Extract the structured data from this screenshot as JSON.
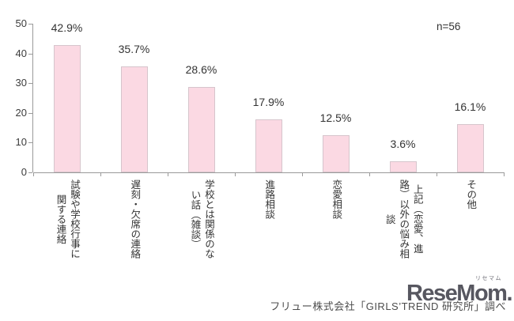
{
  "chart_data": {
    "type": "bar",
    "title": "",
    "xlabel": "",
    "ylabel": "",
    "categories": [
      "試験や学校行事に\n関する連絡",
      "遅刻・欠席の連絡",
      "学校とは関係のな\nい話（雑談）",
      "進路相談",
      "恋愛相談",
      "上記（恋愛、進\n路）以外の悩み相\n談",
      "その他"
    ],
    "values": [
      42.9,
      35.7,
      28.6,
      17.9,
      12.5,
      3.6,
      16.1
    ],
    "value_labels": [
      "42.9%",
      "35.7%",
      "28.6%",
      "17.9%",
      "12.5%",
      "3.6%",
      "16.1%"
    ],
    "ylim": [
      0,
      50
    ],
    "yticks": [
      0,
      10,
      20,
      30,
      40,
      50
    ],
    "grid": "off",
    "legend": "none",
    "sample_label": "n=56",
    "bar_fill": "#fbd9e3",
    "bar_border": "#d6c5cc",
    "axis_color": "#9a9a9a"
  },
  "footer": {
    "source": "フリュー株式会社「GIRLS’TREND 研究所」調べ",
    "logo_text": "ReseMom.",
    "logo_ruby": "リセマム"
  }
}
